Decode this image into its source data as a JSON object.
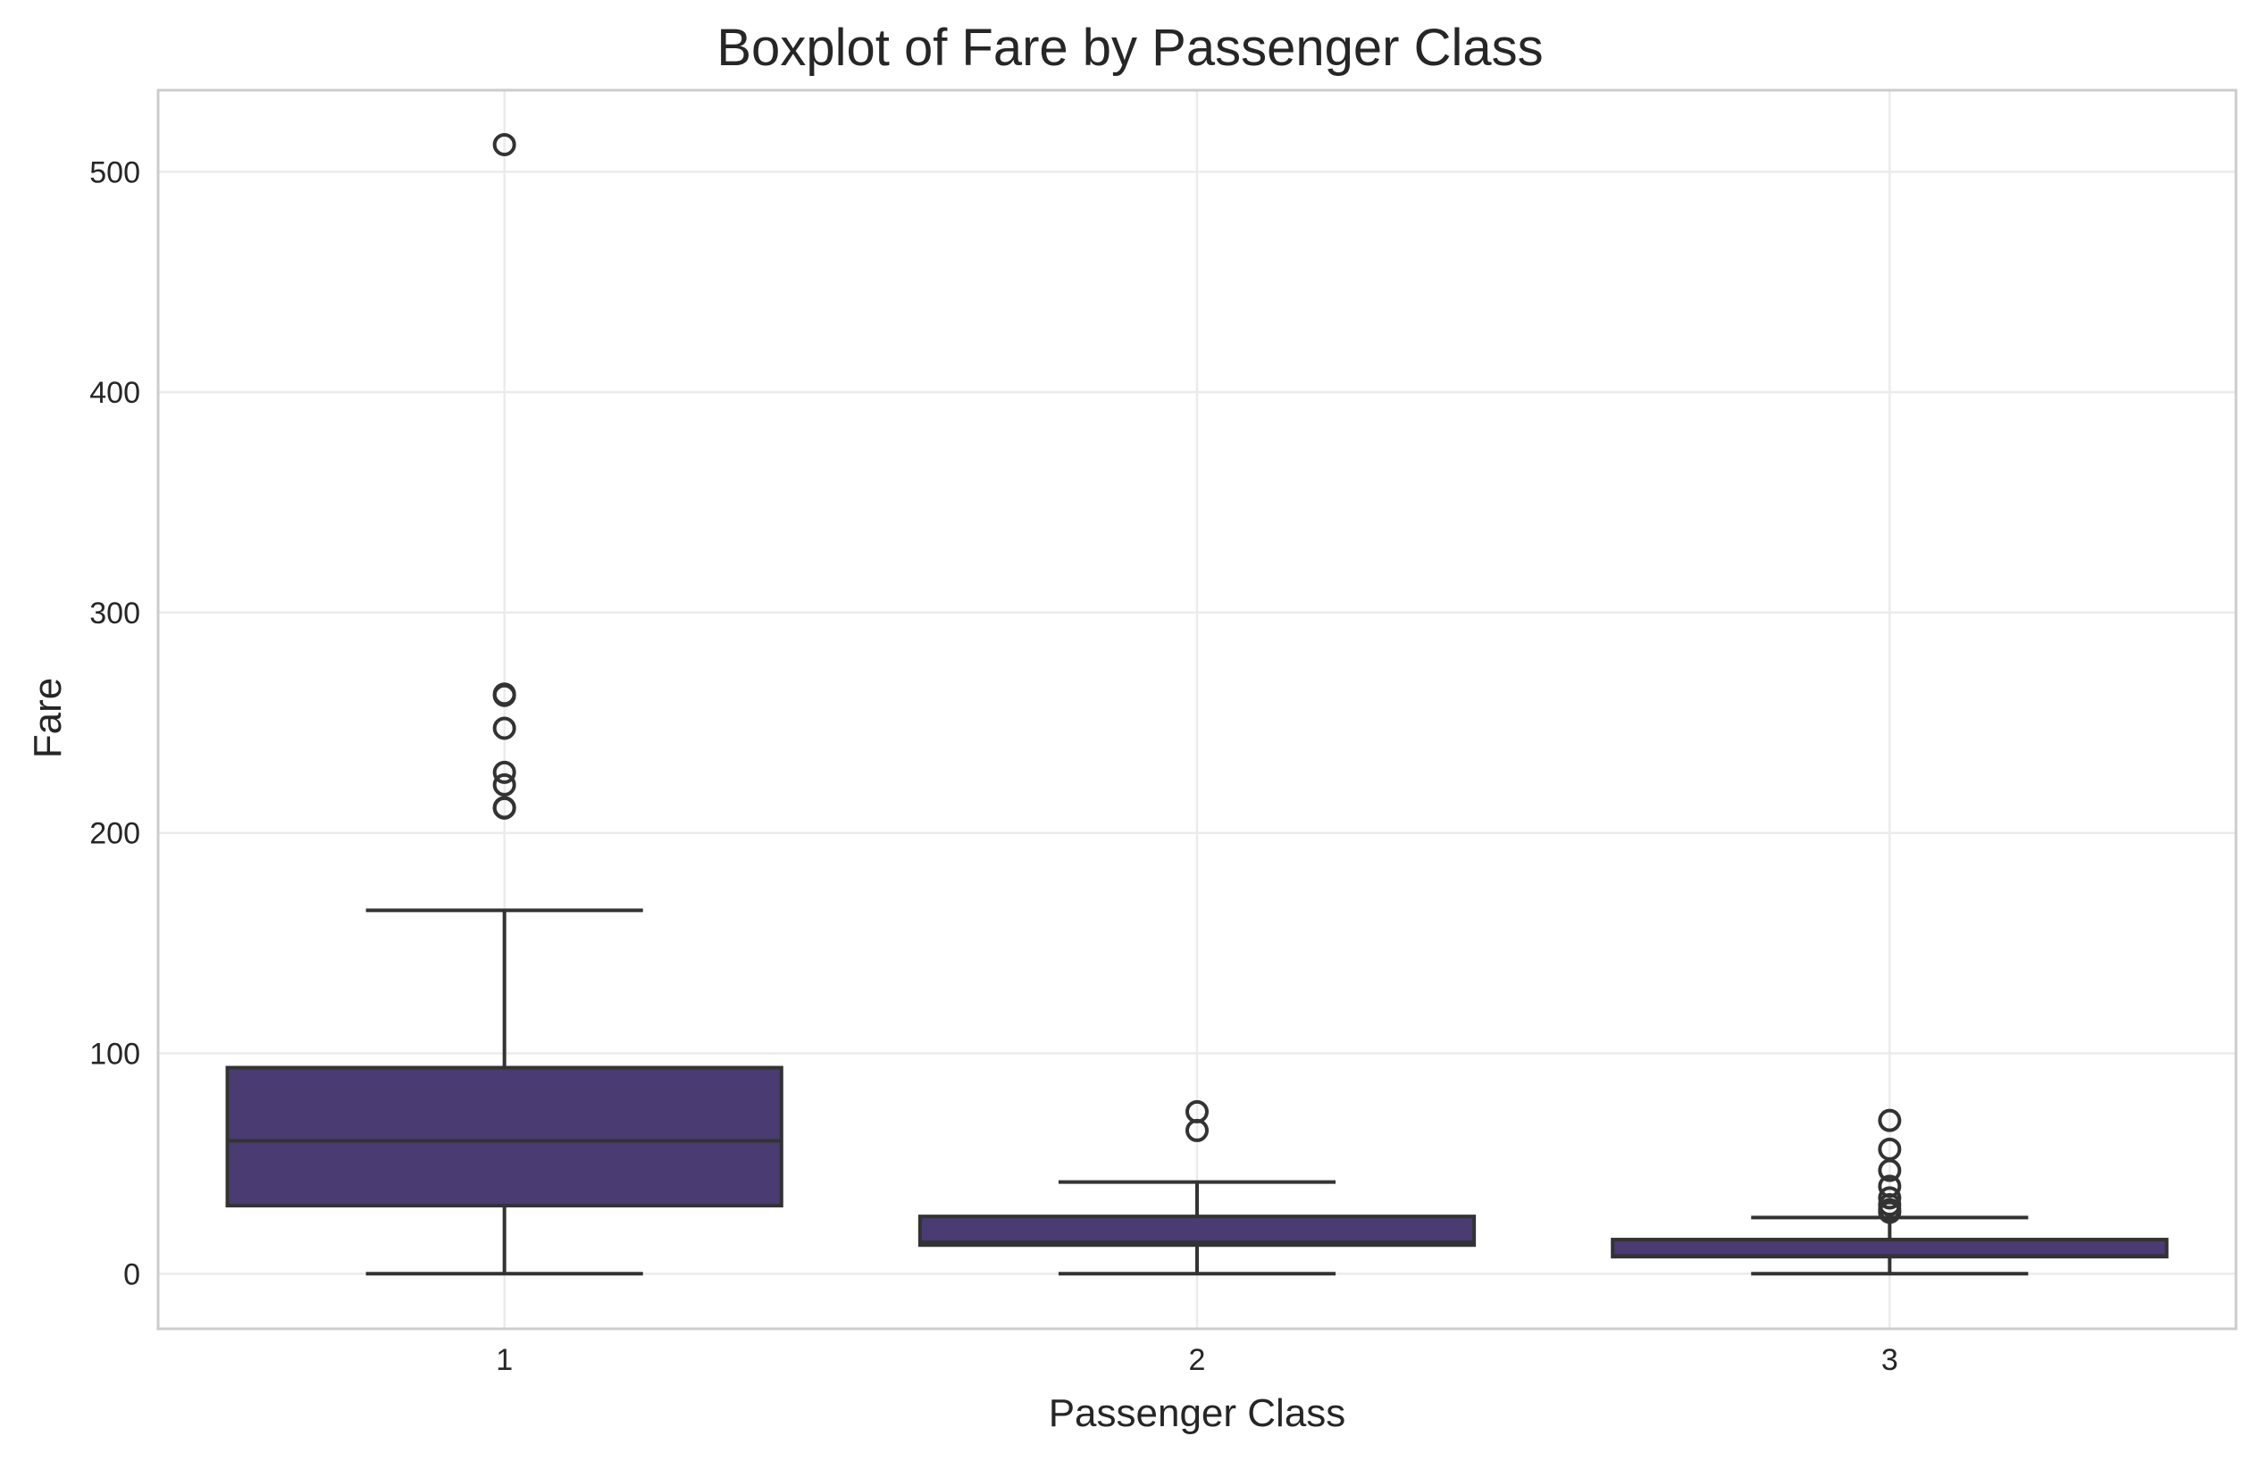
{
  "chart_data": {
    "type": "box",
    "title": "Boxplot of Fare by Passenger Class",
    "xlabel": "Passenger Class",
    "ylabel": "Fare",
    "categories": [
      "1",
      "2",
      "3"
    ],
    "yticks": [
      0,
      100,
      200,
      300,
      400,
      500
    ],
    "ylim": [
      -25,
      537
    ],
    "grid": true,
    "color": "#4a3b73",
    "boxes": [
      {
        "category": "1",
        "whisker_low": 0,
        "q1": 30.9,
        "median": 60.3,
        "q3": 93.5,
        "whisker_high": 164.9,
        "outliers": [
          512.3,
          263,
          262.4,
          247.5,
          227.5,
          221.8,
          211.5,
          211.3
        ]
      },
      {
        "category": "2",
        "whisker_low": 0,
        "q1": 13,
        "median": 14.25,
        "q3": 26,
        "whisker_high": 41.6,
        "outliers": [
          73.5,
          65
        ]
      },
      {
        "category": "3",
        "whisker_low": 0,
        "q1": 7.75,
        "median": 8.05,
        "q3": 15.5,
        "whisker_high": 25.5,
        "outliers": [
          69.55,
          56.5,
          46.9,
          39.7,
          34.4,
          31.3,
          29.1,
          27.9
        ]
      }
    ]
  }
}
